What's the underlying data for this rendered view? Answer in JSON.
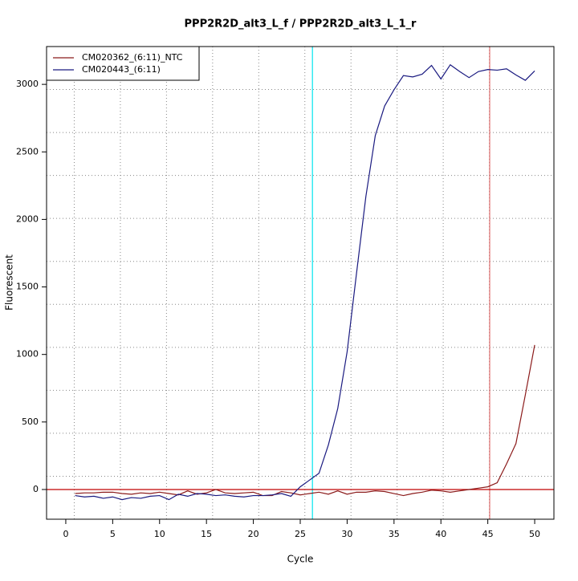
{
  "chart_data": {
    "type": "line",
    "title": "PPP2R2D_alt3_L_f / PPP2R2D_alt3_L_1_r",
    "xlabel": "Cycle",
    "ylabel": "Fluorescent",
    "x": [
      1,
      2,
      3,
      4,
      5,
      6,
      7,
      8,
      9,
      10,
      11,
      12,
      13,
      14,
      15,
      16,
      17,
      18,
      19,
      20,
      21,
      22,
      23,
      24,
      25,
      26,
      27,
      28,
      29,
      30,
      31,
      32,
      33,
      34,
      35,
      36,
      37,
      38,
      39,
      40,
      41,
      42,
      43,
      44,
      45,
      46,
      47,
      48,
      49,
      50
    ],
    "series": [
      {
        "name": "CM020362_(6:11)_NTC",
        "color": "#8b1a1a",
        "values": [
          -30,
          -25,
          -25,
          -20,
          -20,
          -30,
          -35,
          -25,
          -30,
          -20,
          -30,
          -40,
          -10,
          -35,
          -25,
          0,
          -25,
          -30,
          -25,
          -20,
          -45,
          -45,
          -15,
          -25,
          -40,
          -30,
          -20,
          -35,
          -10,
          -35,
          -20,
          -20,
          -10,
          -15,
          -30,
          -45,
          -30,
          -20,
          -5,
          -10,
          -20,
          -10,
          0,
          10,
          20,
          50,
          190,
          340,
          700,
          1070
        ]
      },
      {
        "name": "CM020443_(6:11)",
        "color": "#1a1a80",
        "values": [
          -45,
          -55,
          -50,
          -65,
          -55,
          -75,
          -60,
          -65,
          -50,
          -45,
          -75,
          -35,
          -50,
          -30,
          -35,
          -45,
          -40,
          -50,
          -55,
          -45,
          -45,
          -40,
          -30,
          -50,
          20,
          70,
          120,
          330,
          600,
          1020,
          1600,
          2170,
          2620,
          2840,
          2960,
          3065,
          3055,
          3075,
          3140,
          3040,
          3145,
          3095,
          3050,
          3095,
          3110,
          3105,
          3115,
          3070,
          3030,
          3100
        ]
      }
    ],
    "xlim": [
      -2.05,
      52.05
    ],
    "xticks": [
      0,
      5,
      10,
      15,
      20,
      25,
      30,
      35,
      40,
      45,
      50
    ],
    "ylim": [
      -220,
      3280
    ],
    "yticks": [
      0,
      500,
      1000,
      1500,
      2000,
      2500,
      3000
    ],
    "grid": true,
    "legend": "top-left",
    "threshold": {
      "value": 0,
      "color": "#c00000"
    },
    "vlines": [
      {
        "value": 26.3,
        "color": "#00e5ee"
      },
      {
        "value": 45.2,
        "color": "#e07070"
      }
    ]
  }
}
